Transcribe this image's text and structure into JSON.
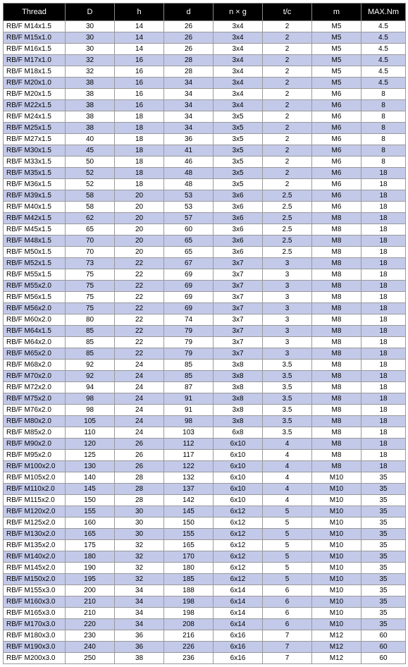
{
  "table": {
    "columns": [
      "Thread",
      "D",
      "h",
      "d",
      "n × g",
      "t/c",
      "m",
      "MAX.Nm"
    ],
    "col_classes": [
      "c0",
      "c1",
      "c2",
      "c3",
      "c4",
      "c5",
      "c6",
      "c7"
    ],
    "header_bg": "#000000",
    "header_fg": "#ffffff",
    "row_odd_bg": "#ffffff",
    "row_even_bg": "#c3c9e9",
    "border_color": "#999999",
    "font_size_header": 11,
    "font_size_cell": 10,
    "rows": [
      [
        "RB/F M14x1.5",
        "30",
        "14",
        "26",
        "3x4",
        "2",
        "M5",
        "4.5"
      ],
      [
        "RB/F M15x1.0",
        "30",
        "14",
        "26",
        "3x4",
        "2",
        "M5",
        "4.5"
      ],
      [
        "RB/F M16x1.5",
        "30",
        "14",
        "26",
        "3x4",
        "2",
        "M5",
        "4.5"
      ],
      [
        "RB/F M17x1.0",
        "32",
        "16",
        "28",
        "3x4",
        "2",
        "M5",
        "4.5"
      ],
      [
        "RB/F M18x1.5",
        "32",
        "16",
        "28",
        "3x4",
        "2",
        "M5",
        "4.5"
      ],
      [
        "RB/F M20x1.0",
        "38",
        "16",
        "34",
        "3x4",
        "2",
        "M5",
        "4.5"
      ],
      [
        "RB/F M20x1.5",
        "38",
        "16",
        "34",
        "3x4",
        "2",
        "M6",
        "8"
      ],
      [
        "RB/F M22x1.5",
        "38",
        "16",
        "34",
        "3x4",
        "2",
        "M6",
        "8"
      ],
      [
        "RB/F M24x1.5",
        "38",
        "18",
        "34",
        "3x5",
        "2",
        "M6",
        "8"
      ],
      [
        "RB/F M25x1.5",
        "38",
        "18",
        "34",
        "3x5",
        "2",
        "M6",
        "8"
      ],
      [
        "RB/F M27x1.5",
        "40",
        "18",
        "36",
        "3x5",
        "2",
        "M6",
        "8"
      ],
      [
        "RB/F M30x1.5",
        "45",
        "18",
        "41",
        "3x5",
        "2",
        "M6",
        "8"
      ],
      [
        "RB/F M33x1.5",
        "50",
        "18",
        "46",
        "3x5",
        "2",
        "M6",
        "8"
      ],
      [
        "RB/F M35x1.5",
        "52",
        "18",
        "48",
        "3x5",
        "2",
        "M6",
        "18"
      ],
      [
        "RB/F M36x1.5",
        "52",
        "18",
        "48",
        "3x5",
        "2",
        "M6",
        "18"
      ],
      [
        "RB/F M39x1.5",
        "58",
        "20",
        "53",
        "3x6",
        "2.5",
        "M6",
        "18"
      ],
      [
        "RB/F M40x1.5",
        "58",
        "20",
        "53",
        "3x6",
        "2.5",
        "M6",
        "18"
      ],
      [
        "RB/F M42x1.5",
        "62",
        "20",
        "57",
        "3x6",
        "2.5",
        "M8",
        "18"
      ],
      [
        "RB/F M45x1.5",
        "65",
        "20",
        "60",
        "3x6",
        "2.5",
        "M8",
        "18"
      ],
      [
        "RB/F M48x1.5",
        "70",
        "20",
        "65",
        "3x6",
        "2.5",
        "M8",
        "18"
      ],
      [
        "RB/F M50x1.5",
        "70",
        "20",
        "65",
        "3x6",
        "2.5",
        "M8",
        "18"
      ],
      [
        "RB/F M52x1.5",
        "73",
        "22",
        "67",
        "3x7",
        "3",
        "M8",
        "18"
      ],
      [
        "RB/F M55x1.5",
        "75",
        "22",
        "69",
        "3x7",
        "3",
        "M8",
        "18"
      ],
      [
        "RB/F M55x2.0",
        "75",
        "22",
        "69",
        "3x7",
        "3",
        "M8",
        "18"
      ],
      [
        "RB/F M56x1.5",
        "75",
        "22",
        "69",
        "3x7",
        "3",
        "M8",
        "18"
      ],
      [
        "RB/F M56x2.0",
        "75",
        "22",
        "69",
        "3x7",
        "3",
        "M8",
        "18"
      ],
      [
        "RB/F M60x2.0",
        "80",
        "22",
        "74",
        "3x7",
        "3",
        "M8",
        "18"
      ],
      [
        "RB/F M64x1.5",
        "85",
        "22",
        "79",
        "3x7",
        "3",
        "M8",
        "18"
      ],
      [
        "RB/F M64x2.0",
        "85",
        "22",
        "79",
        "3x7",
        "3",
        "M8",
        "18"
      ],
      [
        "RB/F M65x2.0",
        "85",
        "22",
        "79",
        "3x7",
        "3",
        "M8",
        "18"
      ],
      [
        "RB/F M68x2.0",
        "92",
        "24",
        "85",
        "3x8",
        "3.5",
        "M8",
        "18"
      ],
      [
        "RB/F M70x2.0",
        "92",
        "24",
        "85",
        "3x8",
        "3.5",
        "M8",
        "18"
      ],
      [
        "RB/F M72x2.0",
        "94",
        "24",
        "87",
        "3x8",
        "3.5",
        "M8",
        "18"
      ],
      [
        "RB/F M75x2.0",
        "98",
        "24",
        "91",
        "3x8",
        "3.5",
        "M8",
        "18"
      ],
      [
        "RB/F M76x2.0",
        "98",
        "24",
        "91",
        "3x8",
        "3.5",
        "M8",
        "18"
      ],
      [
        "RB/F M80x2.0",
        "105",
        "24",
        "98",
        "3x8",
        "3.5",
        "M8",
        "18"
      ],
      [
        "RB/F M85x2.0",
        "110",
        "24",
        "103",
        "6x8",
        "3.5",
        "M8",
        "18"
      ],
      [
        "RB/F M90x2.0",
        "120",
        "26",
        "112",
        "6x10",
        "4",
        "M8",
        "18"
      ],
      [
        "RB/F M95x2.0",
        "125",
        "26",
        "117",
        "6x10",
        "4",
        "M8",
        "18"
      ],
      [
        "RB/F M100x2.0",
        "130",
        "26",
        "122",
        "6x10",
        "4",
        "M8",
        "18"
      ],
      [
        "RB/F M105x2.0",
        "140",
        "28",
        "132",
        "6x10",
        "4",
        "M10",
        "35"
      ],
      [
        "RB/F M110x2.0",
        "145",
        "28",
        "137",
        "6x10",
        "4",
        "M10",
        "35"
      ],
      [
        "RB/F M115x2.0",
        "150",
        "28",
        "142",
        "6x10",
        "4",
        "M10",
        "35"
      ],
      [
        "RB/F M120x2.0",
        "155",
        "30",
        "145",
        "6x12",
        "5",
        "M10",
        "35"
      ],
      [
        "RB/F M125x2.0",
        "160",
        "30",
        "150",
        "6x12",
        "5",
        "M10",
        "35"
      ],
      [
        "RB/F M130x2.0",
        "165",
        "30",
        "155",
        "6x12",
        "5",
        "M10",
        "35"
      ],
      [
        "RB/F M135x2.0",
        "175",
        "32",
        "165",
        "6x12",
        "5",
        "M10",
        "35"
      ],
      [
        "RB/F M140x2.0",
        "180",
        "32",
        "170",
        "6x12",
        "5",
        "M10",
        "35"
      ],
      [
        "RB/F M145x2.0",
        "190",
        "32",
        "180",
        "6x12",
        "5",
        "M10",
        "35"
      ],
      [
        "RB/F M150x2.0",
        "195",
        "32",
        "185",
        "6x12",
        "5",
        "M10",
        "35"
      ],
      [
        "RB/F M155x3.0",
        "200",
        "34",
        "188",
        "6x14",
        "6",
        "M10",
        "35"
      ],
      [
        "RB/F M160x3.0",
        "210",
        "34",
        "198",
        "6x14",
        "6",
        "M10",
        "35"
      ],
      [
        "RB/F M165x3.0",
        "210",
        "34",
        "198",
        "6x14",
        "6",
        "M10",
        "35"
      ],
      [
        "RB/F M170x3.0",
        "220",
        "34",
        "208",
        "6x14",
        "6",
        "M10",
        "35"
      ],
      [
        "RB/F M180x3.0",
        "230",
        "36",
        "216",
        "6x16",
        "7",
        "M12",
        "60"
      ],
      [
        "RB/F M190x3.0",
        "240",
        "36",
        "226",
        "6x16",
        "7",
        "M12",
        "60"
      ],
      [
        "RB/F M200x3.0",
        "250",
        "38",
        "236",
        "6x16",
        "7",
        "M12",
        "60"
      ]
    ]
  }
}
